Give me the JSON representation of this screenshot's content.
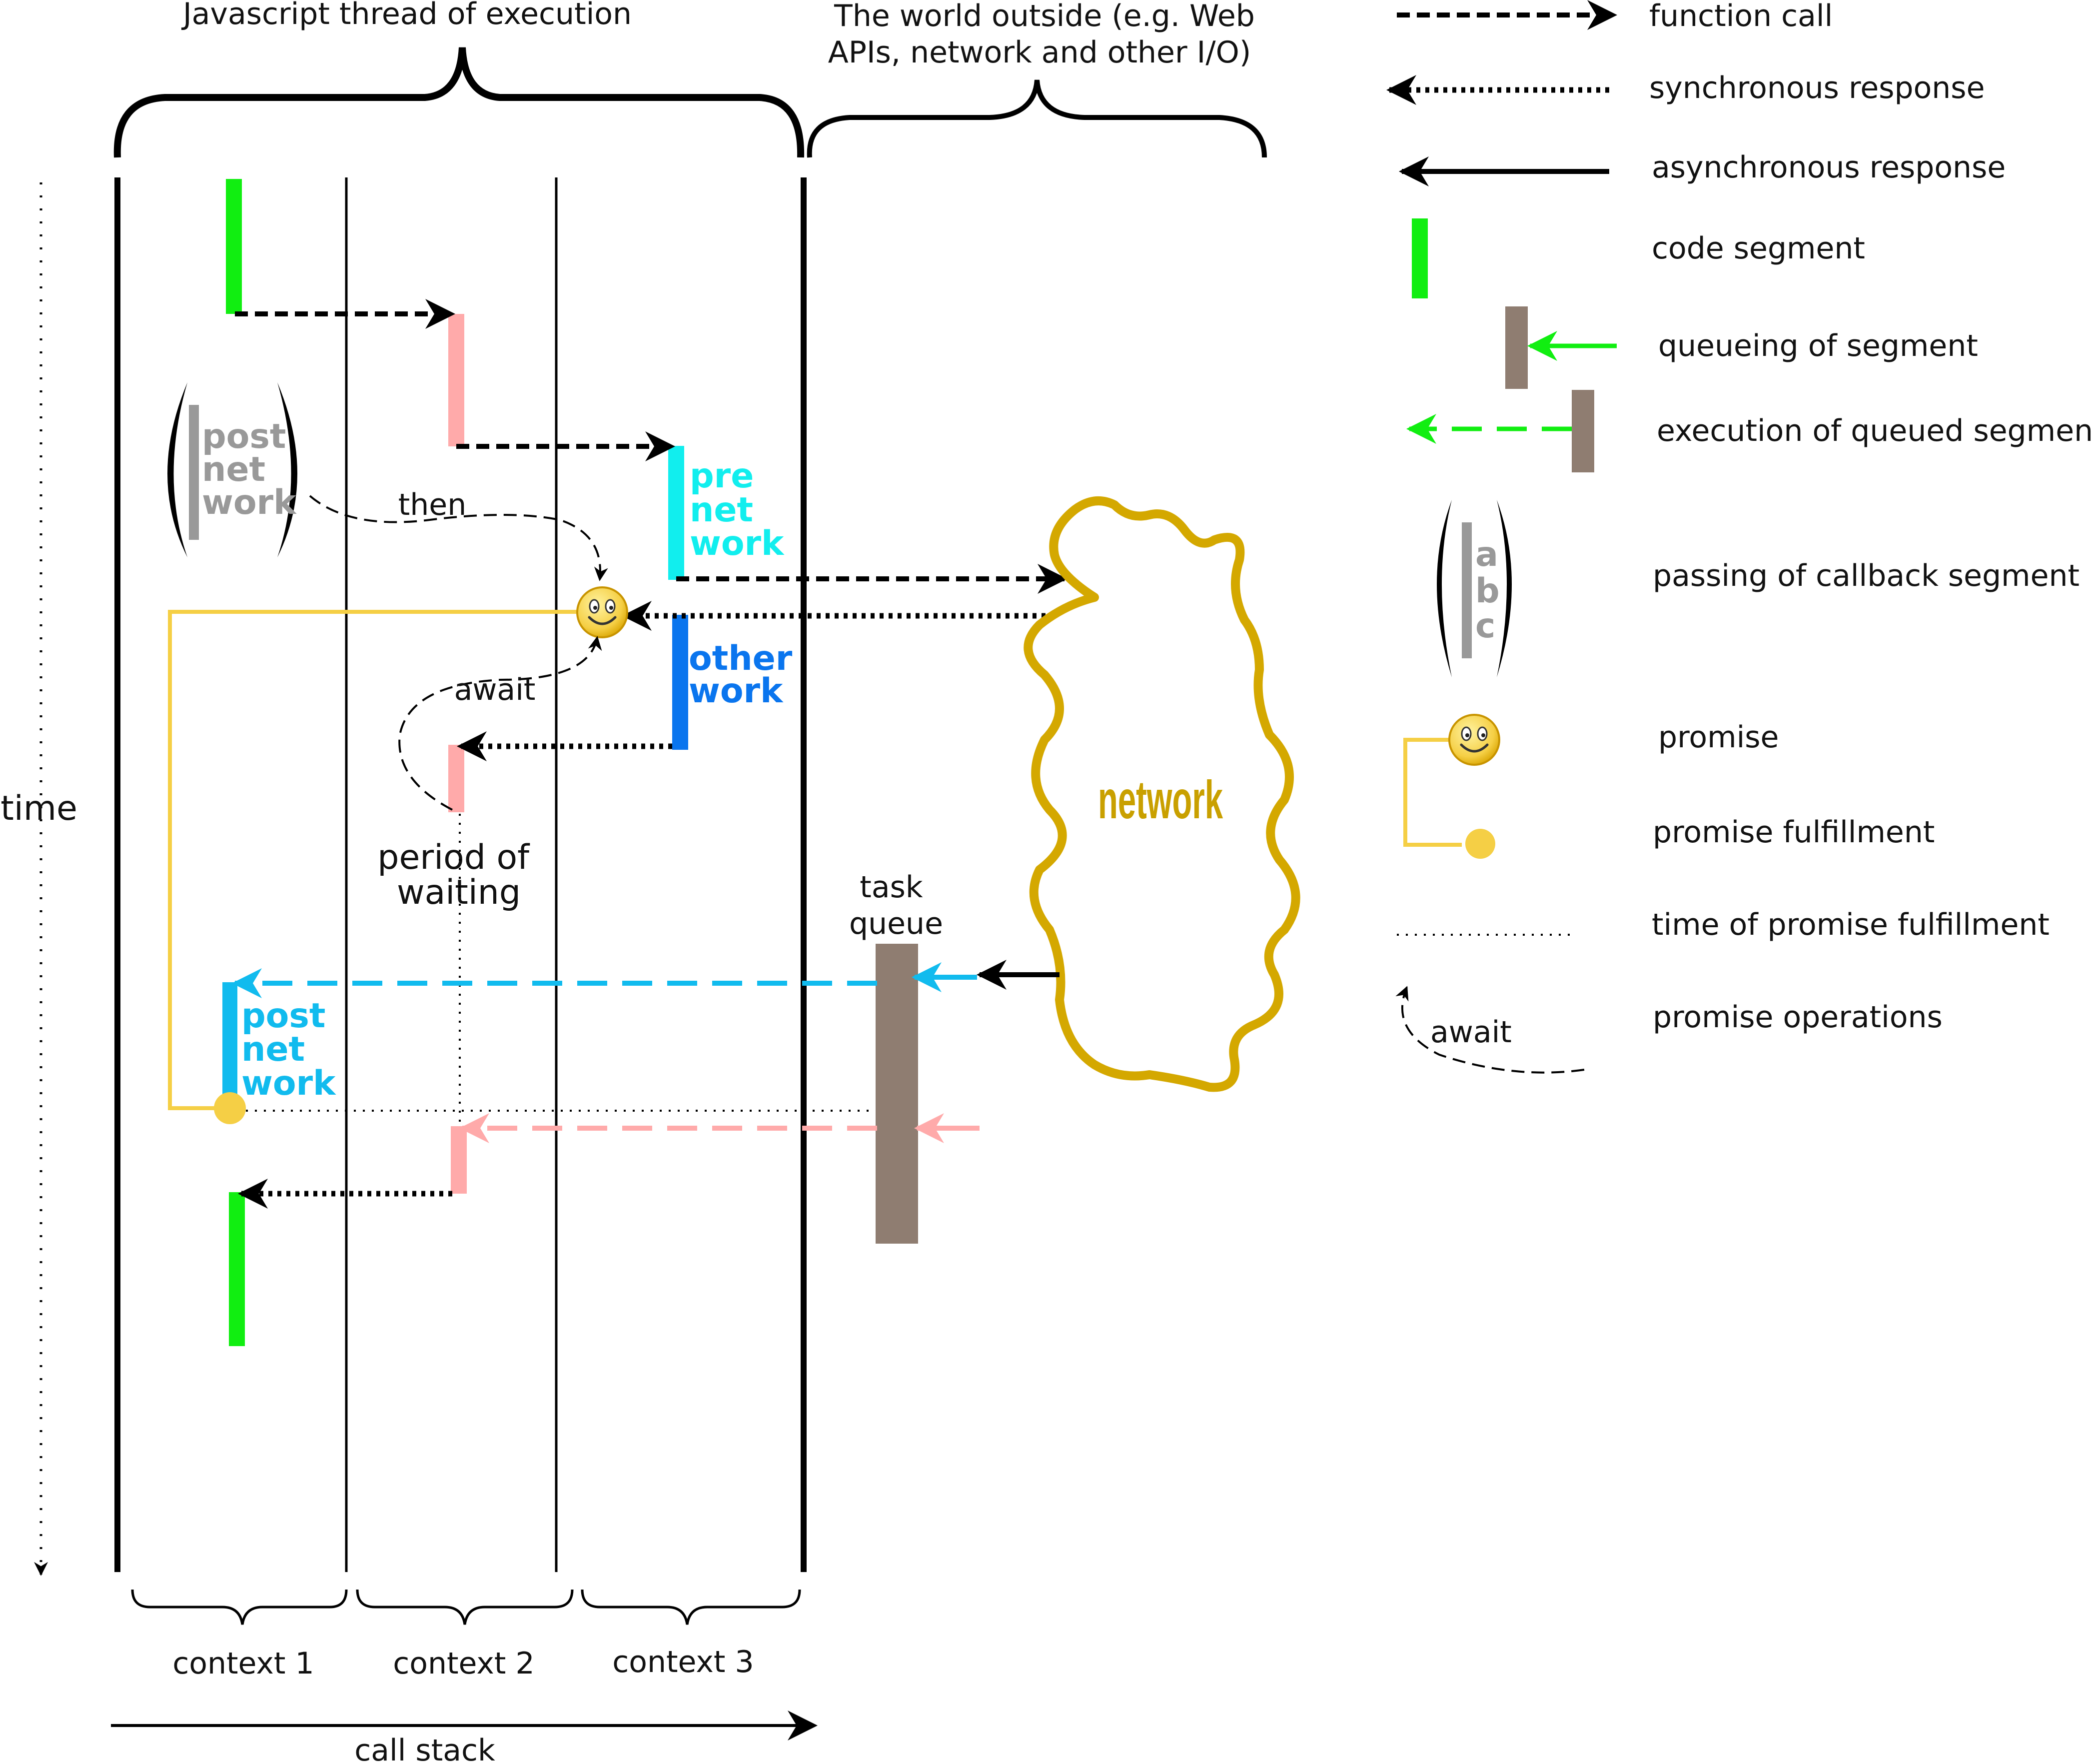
{
  "headers": {
    "js_thread": "Javascript thread of execution",
    "outside_line1": "The world outside (e.g. Web",
    "outside_line2": "APIs, network and other I/O)"
  },
  "axis": {
    "time": "time",
    "call_stack": "call stack"
  },
  "contexts": [
    "context 1",
    "context 2",
    "context 3"
  ],
  "segments": {
    "post_network_callback": [
      "post",
      "net",
      "work"
    ],
    "pre_network": [
      "pre",
      "net",
      "work"
    ],
    "other_work": [
      "other",
      "work"
    ],
    "post_network": [
      "post",
      "net",
      "work"
    ]
  },
  "labels": {
    "then": "then",
    "await": "await",
    "period_line1": "period of",
    "period_line2": "waiting",
    "task_line1": "task",
    "task_line2": "queue",
    "network": "network"
  },
  "legend": {
    "function_call": "function call",
    "sync_response": "synchronous response",
    "async_response": "asynchronous response",
    "code_segment": "code segment",
    "queueing": "queueing of segment",
    "execution_queued": "execution of queued segment",
    "callback_letters": [
      "a",
      "b",
      "c"
    ],
    "passing_callback": "passing of callback segment",
    "promise": "promise",
    "promise_fulfillment": "promise fulfillment",
    "time_fulfillment": "time of promise fulfillment",
    "await_sample": "await",
    "promise_ops": "promise operations"
  },
  "colors": {
    "code_green": "#11ee11",
    "pink": "#ffaaaa",
    "cyan": "#11eeee",
    "blue": "#0a75ee",
    "light_blue": "#11bbee",
    "gray": "#999999",
    "brown": "#8f7d71",
    "gold": "#f5cf45",
    "network": "#d4a800"
  }
}
